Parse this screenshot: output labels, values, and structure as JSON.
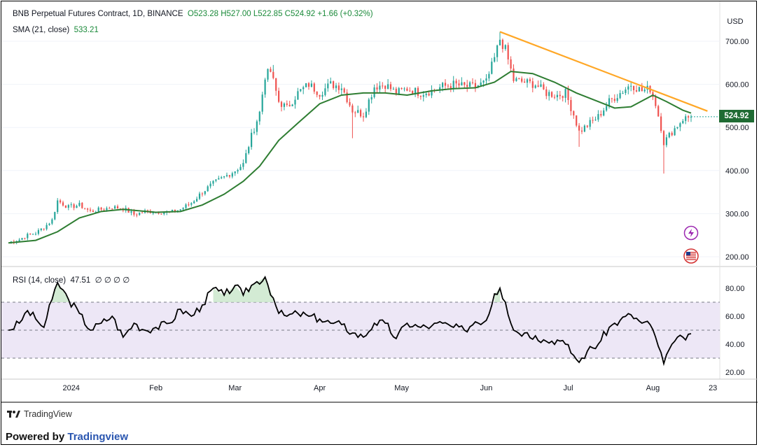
{
  "header": {
    "symbol": "BNB Perpetual Futures Contract, 1D, BINANCE",
    "ohlc": "O523.28  H527.00  L522.85  C524.92  +1.66 (+0.32%)",
    "sma_label": "SMA (21, close)",
    "sma_value": "533.21",
    "rsi_label": "RSI (14, close)",
    "rsi_value": "47.51",
    "rsi_extra": "∅ ∅ ∅ ∅"
  },
  "price_tag": "524.92",
  "branding": {
    "logo_text": "TradingView",
    "powered_prefix": "Powered by",
    "powered_brand": "Tradingview"
  },
  "icons": [
    "lightning-icon",
    "us-flag-icon"
  ],
  "colors": {
    "up": "#26a69a",
    "down": "#ef5350",
    "sma": "#2e7d32",
    "trendline": "#ffa726",
    "rsi_line": "#000000",
    "rsi_band": "#ede7f6"
  },
  "chart_data": [
    {
      "type": "candlestick",
      "title": "BNB Perpetual Futures Contract, 1D, BINANCE",
      "currency": "USD",
      "ylim": [
        200,
        730
      ],
      "y_ticks": [
        "700.00",
        "600.00",
        "500.00",
        "400.00",
        "300.00",
        "200.00"
      ],
      "x_ticks": [
        "2024",
        "Feb",
        "Mar",
        "Apr",
        "May",
        "Jun",
        "Jul",
        "Aug",
        "23"
      ],
      "close_path": [
        [
          "2023-12-09",
          233
        ],
        [
          "2023-12-13",
          240
        ],
        [
          "2023-12-16",
          250
        ],
        [
          "2023-12-19",
          255
        ],
        [
          "2023-12-22",
          268
        ],
        [
          "2023-12-25",
          285
        ],
        [
          "2023-12-27",
          330
        ],
        [
          "2023-12-31",
          315
        ],
        [
          "2024-01-04",
          320
        ],
        [
          "2024-01-08",
          305
        ],
        [
          "2024-01-12",
          310
        ],
        [
          "2024-01-16",
          315
        ],
        [
          "2024-01-20",
          312
        ],
        [
          "2024-01-24",
          298
        ],
        [
          "2024-01-28",
          305
        ],
        [
          "2024-02-01",
          305
        ],
        [
          "2024-02-06",
          302
        ],
        [
          "2024-02-10",
          310
        ],
        [
          "2024-02-14",
          325
        ],
        [
          "2024-02-18",
          350
        ],
        [
          "2024-02-22",
          370
        ],
        [
          "2024-02-26",
          385
        ],
        [
          "2024-03-01",
          400
        ],
        [
          "2024-03-04",
          415
        ],
        [
          "2024-03-07",
          480
        ],
        [
          "2024-03-10",
          535
        ],
        [
          "2024-03-12",
          620
        ],
        [
          "2024-03-14",
          630
        ],
        [
          "2024-03-17",
          560
        ],
        [
          "2024-03-20",
          545
        ],
        [
          "2024-03-24",
          580
        ],
        [
          "2024-03-28",
          600
        ],
        [
          "2024-04-01",
          580
        ],
        [
          "2024-04-05",
          600
        ],
        [
          "2024-04-09",
          595
        ],
        [
          "2024-04-13",
          540
        ],
        [
          "2024-04-17",
          530
        ],
        [
          "2024-04-21",
          595
        ],
        [
          "2024-04-25",
          600
        ],
        [
          "2024-04-29",
          580
        ],
        [
          "2024-05-03",
          590
        ],
        [
          "2024-05-08",
          580
        ],
        [
          "2024-05-12",
          585
        ],
        [
          "2024-05-16",
          595
        ],
        [
          "2024-05-20",
          600
        ],
        [
          "2024-05-24",
          595
        ],
        [
          "2024-05-28",
          595
        ],
        [
          "2024-06-01",
          605
        ],
        [
          "2024-06-04",
          660
        ],
        [
          "2024-06-06",
          705
        ],
        [
          "2024-06-08",
          680
        ],
        [
          "2024-06-11",
          610
        ],
        [
          "2024-06-15",
          605
        ],
        [
          "2024-06-19",
          600
        ],
        [
          "2024-06-23",
          580
        ],
        [
          "2024-06-27",
          575
        ],
        [
          "2024-06-30",
          580
        ],
        [
          "2024-07-03",
          530
        ],
        [
          "2024-07-05",
          490
        ],
        [
          "2024-07-08",
          505
        ],
        [
          "2024-07-12",
          525
        ],
        [
          "2024-07-16",
          560
        ],
        [
          "2024-07-20",
          580
        ],
        [
          "2024-07-24",
          600
        ],
        [
          "2024-07-28",
          585
        ],
        [
          "2024-07-31",
          590
        ],
        [
          "2024-08-02",
          555
        ],
        [
          "2024-08-04",
          500
        ],
        [
          "2024-08-05",
          465
        ],
        [
          "2024-08-08",
          490
        ],
        [
          "2024-08-12",
          520
        ],
        [
          "2024-08-15",
          524.92
        ]
      ],
      "wick_extremes": [
        [
          "2024-03-15",
          645
        ],
        [
          "2024-04-13",
          475
        ],
        [
          "2024-06-06",
          722
        ],
        [
          "2024-07-05",
          455
        ],
        [
          "2024-08-05",
          393
        ]
      ],
      "series": [
        {
          "name": "SMA (21, close)",
          "points": [
            [
              "2023-12-09",
              232
            ],
            [
              "2023-12-19",
              238
            ],
            [
              "2023-12-27",
              258
            ],
            [
              "2024-01-04",
              290
            ],
            [
              "2024-01-12",
              305
            ],
            [
              "2024-01-20",
              310
            ],
            [
              "2024-02-01",
              303
            ],
            [
              "2024-02-10",
              305
            ],
            [
              "2024-02-18",
              320
            ],
            [
              "2024-02-26",
              345
            ],
            [
              "2024-03-04",
              375
            ],
            [
              "2024-03-10",
              410
            ],
            [
              "2024-03-17",
              470
            ],
            [
              "2024-03-24",
              510
            ],
            [
              "2024-04-01",
              555
            ],
            [
              "2024-04-09",
              575
            ],
            [
              "2024-04-17",
              580
            ],
            [
              "2024-04-25",
              580
            ],
            [
              "2024-05-03",
              575
            ],
            [
              "2024-05-12",
              585
            ],
            [
              "2024-05-20",
              590
            ],
            [
              "2024-05-28",
              592
            ],
            [
              "2024-06-04",
              605
            ],
            [
              "2024-06-10",
              630
            ],
            [
              "2024-06-18",
              625
            ],
            [
              "2024-06-26",
              605
            ],
            [
              "2024-07-04",
              580
            ],
            [
              "2024-07-12",
              560
            ],
            [
              "2024-07-18",
              545
            ],
            [
              "2024-07-24",
              548
            ],
            [
              "2024-08-01",
              575
            ],
            [
              "2024-08-06",
              560
            ],
            [
              "2024-08-12",
              540
            ],
            [
              "2024-08-15",
              533.21
            ]
          ]
        },
        {
          "name": "trendline",
          "points": [
            [
              "2024-06-06",
              722
            ],
            [
              "2024-08-21",
              538
            ]
          ]
        }
      ],
      "last_value": 524.92
    },
    {
      "type": "line",
      "title": "RSI (14, close)",
      "ylim": [
        20,
        90
      ],
      "y_ticks": [
        "80.00",
        "60.00",
        "40.00",
        "20.00"
      ],
      "bands": [
        30,
        50,
        70
      ],
      "series": [
        {
          "name": "RSI (14, close)",
          "points": [
            [
              "2023-12-09",
              50
            ],
            [
              "2023-12-13",
              55
            ],
            [
              "2023-12-16",
              64
            ],
            [
              "2023-12-19",
              58
            ],
            [
              "2023-12-22",
              52
            ],
            [
              "2023-12-25",
              72
            ],
            [
              "2023-12-27",
              84
            ],
            [
              "2023-12-31",
              72
            ],
            [
              "2024-01-04",
              62
            ],
            [
              "2024-01-08",
              50
            ],
            [
              "2024-01-12",
              55
            ],
            [
              "2024-01-16",
              60
            ],
            [
              "2024-01-20",
              45
            ],
            [
              "2024-01-24",
              55
            ],
            [
              "2024-01-28",
              50
            ],
            [
              "2024-02-01",
              52
            ],
            [
              "2024-02-06",
              55
            ],
            [
              "2024-02-10",
              65
            ],
            [
              "2024-02-14",
              60
            ],
            [
              "2024-02-18",
              68
            ],
            [
              "2024-02-22",
              80
            ],
            [
              "2024-02-26",
              75
            ],
            [
              "2024-03-01",
              82
            ],
            [
              "2024-03-04",
              75
            ],
            [
              "2024-03-07",
              82
            ],
            [
              "2024-03-12",
              88
            ],
            [
              "2024-03-15",
              73
            ],
            [
              "2024-03-17",
              62
            ],
            [
              "2024-03-20",
              60
            ],
            [
              "2024-03-24",
              62
            ],
            [
              "2024-03-28",
              60
            ],
            [
              "2024-04-01",
              58
            ],
            [
              "2024-04-05",
              55
            ],
            [
              "2024-04-09",
              54
            ],
            [
              "2024-04-13",
              48
            ],
            [
              "2024-04-17",
              45
            ],
            [
              "2024-04-21",
              55
            ],
            [
              "2024-04-25",
              55
            ],
            [
              "2024-04-29",
              44
            ],
            [
              "2024-05-03",
              55
            ],
            [
              "2024-05-08",
              52
            ],
            [
              "2024-05-12",
              53
            ],
            [
              "2024-05-16",
              55
            ],
            [
              "2024-05-20",
              52
            ],
            [
              "2024-05-24",
              50
            ],
            [
              "2024-05-28",
              56
            ],
            [
              "2024-06-01",
              57
            ],
            [
              "2024-06-04",
              76
            ],
            [
              "2024-06-06",
              80
            ],
            [
              "2024-06-08",
              70
            ],
            [
              "2024-06-11",
              50
            ],
            [
              "2024-06-15",
              48
            ],
            [
              "2024-06-19",
              46
            ],
            [
              "2024-06-23",
              42
            ],
            [
              "2024-06-27",
              43
            ],
            [
              "2024-06-30",
              40
            ],
            [
              "2024-07-03",
              32
            ],
            [
              "2024-07-05",
              27
            ],
            [
              "2024-07-08",
              35
            ],
            [
              "2024-07-12",
              40
            ],
            [
              "2024-07-16",
              52
            ],
            [
              "2024-07-20",
              57
            ],
            [
              "2024-07-24",
              61
            ],
            [
              "2024-07-28",
              55
            ],
            [
              "2024-07-31",
              54
            ],
            [
              "2024-08-02",
              45
            ],
            [
              "2024-08-04",
              34
            ],
            [
              "2024-08-05",
              26
            ],
            [
              "2024-08-08",
              40
            ],
            [
              "2024-08-12",
              45
            ],
            [
              "2024-08-15",
              47.51
            ]
          ]
        }
      ]
    }
  ]
}
